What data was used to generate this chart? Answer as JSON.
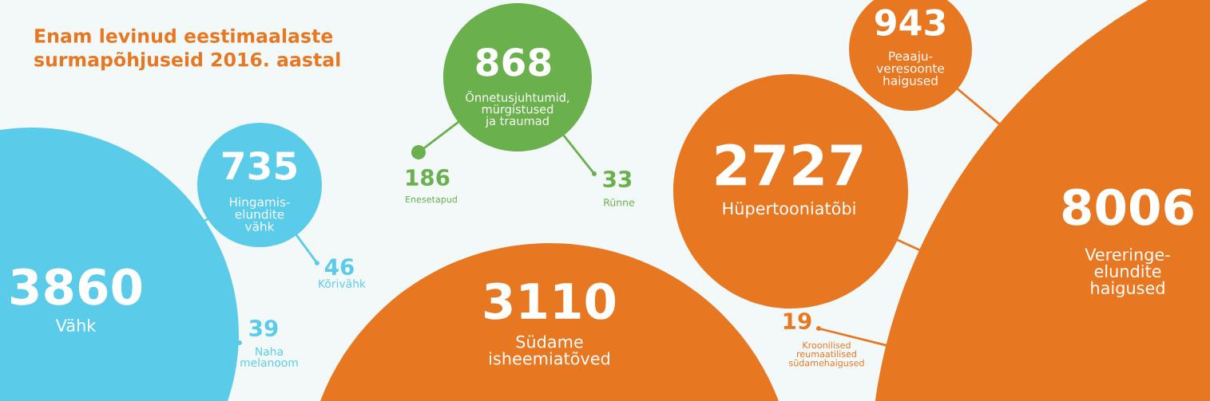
{
  "chart_data": {
    "type": "other",
    "title": "Enam levinud eestimaalaste\nsurmapõhjuseid 2016. aastal",
    "categories": [
      "Vähk",
      "Hingamis-\nelundite\nvähk",
      "Kõrivähk",
      "Naha\nmelanoom",
      "Õnnetusjuhtumid,\nmürgistused\nja traumad",
      "Enesetapud",
      "Rünne",
      "Südame\nisheemiatõved",
      "Hüpertooniatõbi",
      "Kroonilised\nreumaatilised\nsüdamehaigused",
      "Peaaju-\nveresoonte\nhaigused",
      "Vereringe-\nelundite\nhaigused"
    ],
    "values": [
      3860,
      735,
      46,
      39,
      868,
      186,
      33,
      3110,
      2727,
      19,
      943,
      8006
    ],
    "colors": [
      "#5bcbea",
      "#5bcbea",
      "#5bcbea",
      "#5bcbea",
      "#6ab04c",
      "#6ab04c",
      "#6ab04c",
      "#e87722",
      "#e87722",
      "#e87722",
      "#e87722",
      "#e87722"
    ],
    "data_labels": true
  }
}
